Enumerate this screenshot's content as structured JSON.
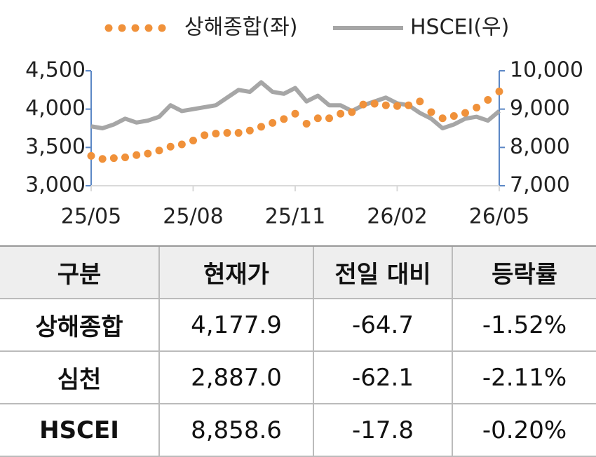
{
  "chart_data": {
    "type": "line",
    "categories": [
      "25/05",
      null,
      null,
      null,
      null,
      null,
      null,
      null,
      null,
      "25/08",
      null,
      null,
      null,
      null,
      null,
      null,
      null,
      null,
      "25/11",
      null,
      null,
      null,
      null,
      null,
      null,
      null,
      null,
      "26/02",
      null,
      null,
      null,
      null,
      null,
      null,
      null,
      null,
      "26/05"
    ],
    "series": [
      {
        "name": "상해종합(좌)",
        "color": "#f0913a",
        "style": "dots",
        "values": [
          3390,
          3350,
          3360,
          3370,
          3400,
          3420,
          3460,
          3510,
          3540,
          3590,
          3660,
          3680,
          3690,
          3690,
          3720,
          3770,
          3820,
          3870,
          3940,
          3810,
          3880,
          3880,
          3940,
          3960,
          4060,
          4070,
          4050,
          4040,
          4050,
          4100,
          3960,
          3880,
          3910,
          3950,
          4020,
          4120,
          4230
        ]
      },
      {
        "name": "HSCEI(우)",
        "color": "#a6a6a6",
        "style": "line",
        "axis": "y2",
        "values": [
          8550,
          8500,
          8600,
          8750,
          8650,
          8700,
          8800,
          9100,
          8950,
          9000,
          9050,
          9100,
          9300,
          9500,
          9450,
          9700,
          9450,
          9400,
          9550,
          9200,
          9350,
          9100,
          9100,
          8950,
          9100,
          9200,
          9300,
          9150,
          9100,
          8900,
          8750,
          8500,
          8600,
          8750,
          8800,
          8700,
          8950
        ]
      }
    ],
    "ylim": [
      3000,
      4500
    ],
    "yticks": [
      {
        "value": 3000,
        "label": "3,000"
      },
      {
        "value": 3500,
        "label": "3,500"
      },
      {
        "value": 4000,
        "label": "4,000"
      },
      {
        "value": 4500,
        "label": "4,500"
      }
    ],
    "y2lim": [
      7000,
      10000
    ],
    "y2ticks": [
      {
        "value": 7000,
        "label": "7,000"
      },
      {
        "value": 8000,
        "label": "8,000"
      },
      {
        "value": 9000,
        "label": "9,000"
      },
      {
        "value": 10000,
        "label": "10,000"
      }
    ],
    "axis_color": "#5b87c5"
  },
  "table": {
    "header": [
      "구분",
      "현재가",
      "전일 대비",
      "등락률"
    ],
    "rows": [
      [
        "상해종합",
        "4,177.9",
        "-64.7",
        "-1.52%"
      ],
      [
        "심천",
        "2,887.0",
        "-62.1",
        "-2.11%"
      ],
      [
        "HSCEI",
        "8,858.6",
        "-17.8",
        "-0.20%"
      ]
    ]
  }
}
